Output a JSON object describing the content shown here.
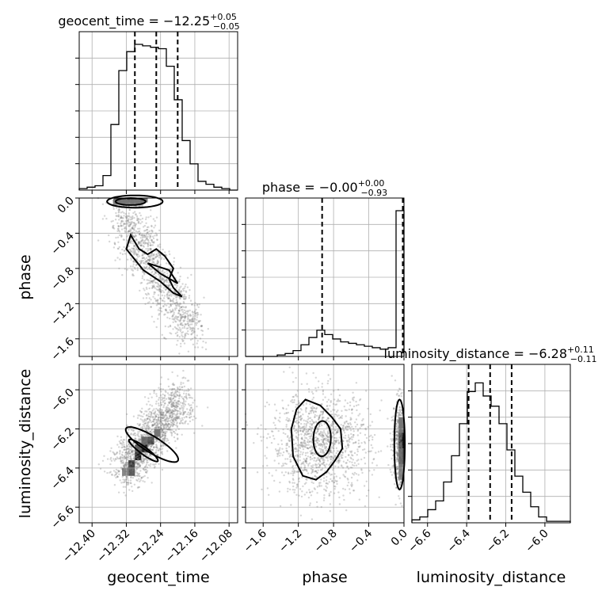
{
  "chart_data": {
    "type": "corner",
    "parameters": [
      {
        "name": "geocent_time",
        "title": {
          "prefix": "geocent_time = ",
          "value": "−12.25",
          "upper": "+0.05",
          "lower": "−0.05"
        },
        "range": [
          -12.43,
          -12.06
        ],
        "ticks": [
          -12.4,
          -12.32,
          -12.24,
          -12.16,
          -12.08
        ],
        "tick_labels": [
          "−12.40",
          "−12.32",
          "−12.24",
          "−12.16",
          "−12.08"
        ],
        "quantiles": [
          -12.3,
          -12.25,
          -12.2
        ],
        "histogram": [
          0.01,
          0.02,
          0.03,
          0.1,
          0.45,
          0.82,
          0.95,
          1.0,
          0.99,
          0.98,
          0.97,
          0.85,
          0.62,
          0.34,
          0.18,
          0.06,
          0.04,
          0.02,
          0.01,
          0.0
        ]
      },
      {
        "name": "phase",
        "title": {
          "prefix": "phase = ",
          "value": "−0.00",
          "upper": "+0.00",
          "lower": "−0.93"
        },
        "range": [
          -1.8,
          0.0
        ],
        "ticks": [
          -1.6,
          -1.2,
          -0.8,
          -0.4,
          0.0
        ],
        "tick_labels": [
          "−1.6",
          "−1.2",
          "−0.8",
          "−0.4",
          "0.0"
        ],
        "quantiles": [
          -0.93,
          -0.0
        ],
        "histogram": [
          0.0,
          0.0,
          0.0,
          0.0,
          0.01,
          0.02,
          0.04,
          0.08,
          0.13,
          0.18,
          0.15,
          0.12,
          0.1,
          0.09,
          0.08,
          0.07,
          0.06,
          0.05,
          0.06,
          1.0
        ]
      },
      {
        "name": "luminosity_distance",
        "title": {
          "prefix": "luminosity_distance = ",
          "value": "−6.28",
          "upper": "+0.11",
          "lower": "−0.11"
        },
        "range": [
          -6.68,
          -5.87
        ],
        "ticks": [
          -6.6,
          -6.4,
          -6.2,
          -6.0
        ],
        "tick_labels": [
          "−6.6",
          "−6.4",
          "−6.2",
          "−6.0"
        ],
        "quantiles": [
          -6.39,
          -6.28,
          -6.17
        ],
        "histogram": [
          0.02,
          0.04,
          0.09,
          0.15,
          0.28,
          0.46,
          0.68,
          0.9,
          0.96,
          0.87,
          0.8,
          0.68,
          0.5,
          0.32,
          0.21,
          0.11,
          0.04,
          0.01,
          0.01,
          0.01
        ]
      }
    ],
    "labels": {
      "geocent_time": "geocent_time",
      "phase": "phase",
      "luminosity_distance": "luminosity_distance"
    },
    "grid": true
  }
}
